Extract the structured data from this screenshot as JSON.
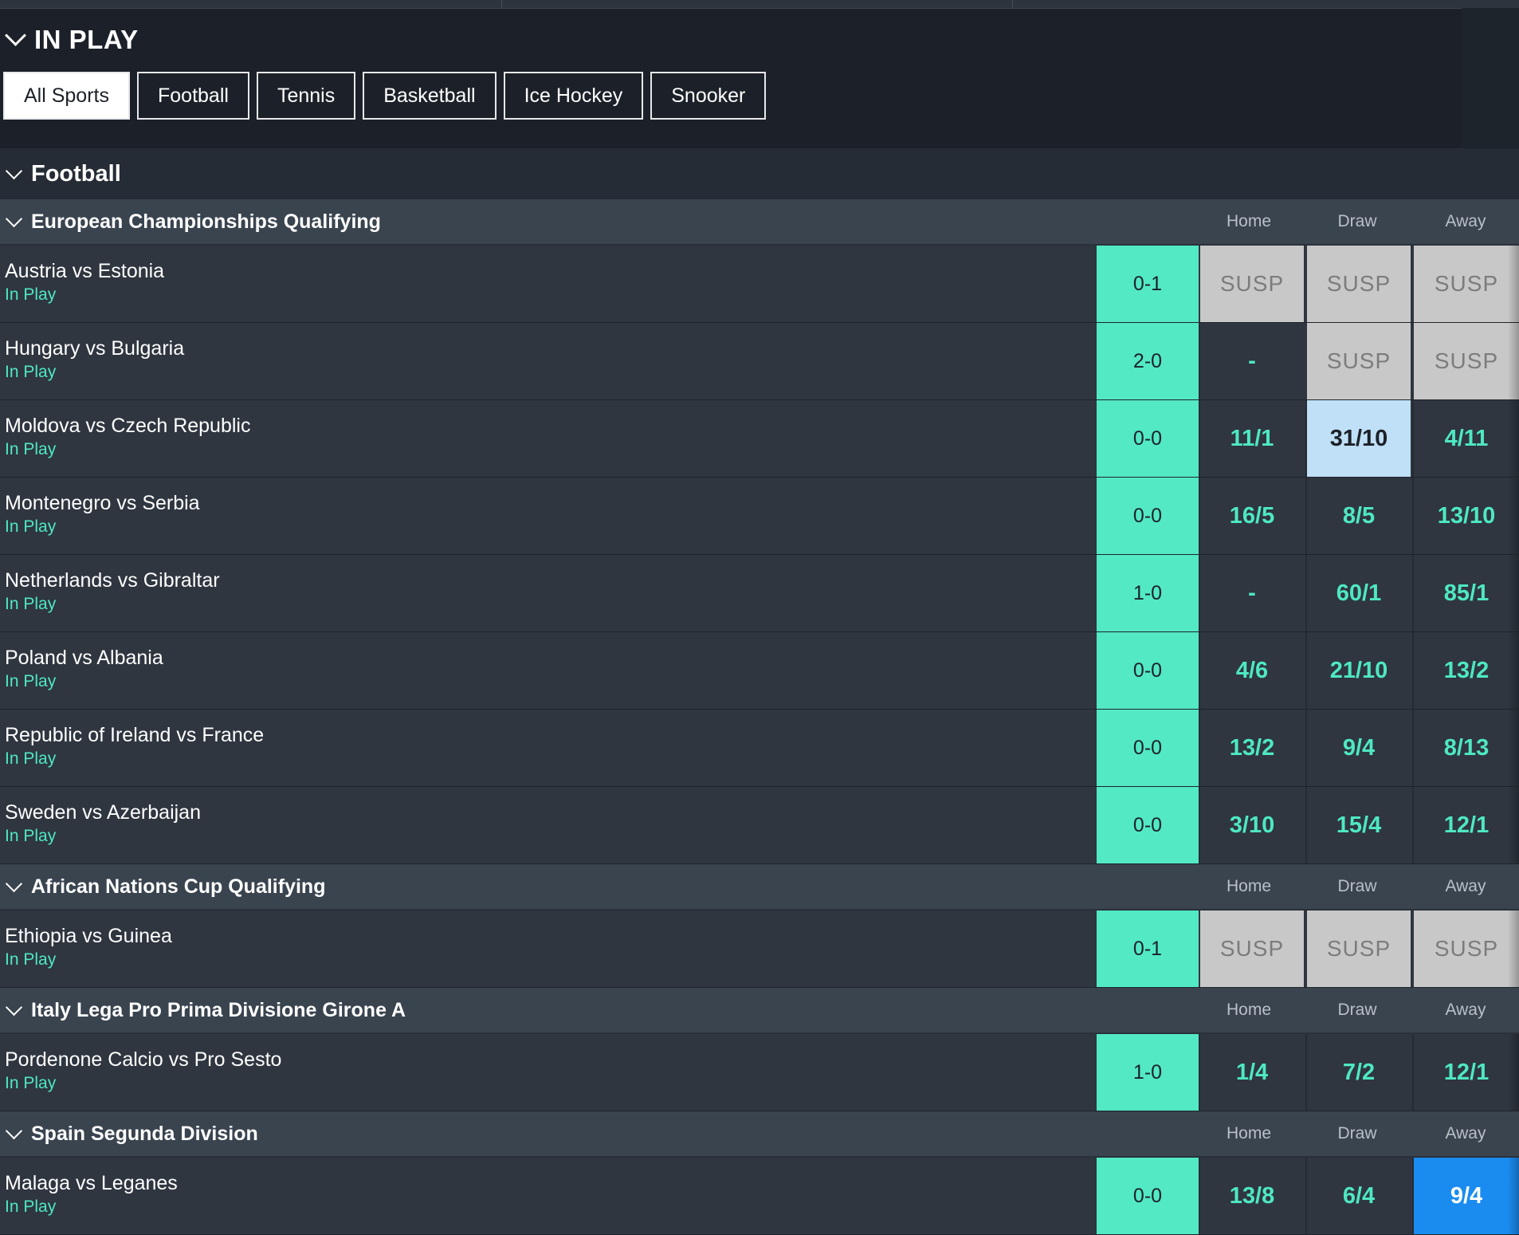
{
  "inplay": {
    "title": "IN PLAY"
  },
  "sport_tabs": [
    "All Sports",
    "Football",
    "Tennis",
    "Basketball",
    "Ice Hockey",
    "Snooker"
  ],
  "active_tab": "All Sports",
  "sport": {
    "title": "Football"
  },
  "columns": {
    "home": "Home",
    "draw": "Draw",
    "away": "Away"
  },
  "competitions": [
    {
      "name": "European Championships Qualifying",
      "matches": [
        {
          "name": "Austria vs Estonia",
          "status": "In Play",
          "score": "0-1",
          "odds": [
            "SUSP",
            "SUSP",
            "SUSP"
          ]
        },
        {
          "name": "Hungary vs Bulgaria",
          "status": "In Play",
          "score": "2-0",
          "odds": [
            "-",
            "SUSP",
            "SUSP"
          ]
        },
        {
          "name": "Moldova vs Czech Republic",
          "status": "In Play",
          "score": "0-0",
          "odds": [
            "11/1",
            "31/10",
            "4/11"
          ],
          "highlight": {
            "index": 1,
            "style": "light"
          }
        },
        {
          "name": "Montenegro vs Serbia",
          "status": "In Play",
          "score": "0-0",
          "odds": [
            "16/5",
            "8/5",
            "13/10"
          ]
        },
        {
          "name": "Netherlands vs Gibraltar",
          "status": "In Play",
          "score": "1-0",
          "odds": [
            "-",
            "60/1",
            "85/1"
          ]
        },
        {
          "name": "Poland vs Albania",
          "status": "In Play",
          "score": "0-0",
          "odds": [
            "4/6",
            "21/10",
            "13/2"
          ]
        },
        {
          "name": "Republic of Ireland vs France",
          "status": "In Play",
          "score": "0-0",
          "odds": [
            "13/2",
            "9/4",
            "8/13"
          ]
        },
        {
          "name": "Sweden vs Azerbaijan",
          "status": "In Play",
          "score": "0-0",
          "odds": [
            "3/10",
            "15/4",
            "12/1"
          ]
        }
      ]
    },
    {
      "name": "African Nations Cup Qualifying",
      "matches": [
        {
          "name": "Ethiopia vs Guinea",
          "status": "In Play",
          "score": "0-1",
          "odds": [
            "SUSP",
            "SUSP",
            "SUSP"
          ]
        }
      ]
    },
    {
      "name": "Italy Lega Pro Prima Divisione Girone A",
      "matches": [
        {
          "name": "Pordenone Calcio vs Pro Sesto",
          "status": "In Play",
          "score": "1-0",
          "odds": [
            "1/4",
            "7/2",
            "12/1"
          ]
        }
      ]
    },
    {
      "name": "Spain Segunda Division",
      "matches": [
        {
          "name": "Malaga vs Leganes",
          "status": "In Play",
          "score": "0-0",
          "odds": [
            "13/8",
            "6/4",
            "9/4"
          ],
          "highlight": {
            "index": 2,
            "style": "blue"
          }
        }
      ]
    }
  ],
  "colors": {
    "accent": "#52e9c4",
    "odds_text": "#4ee8c2",
    "susp_bg": "#c8c8c8",
    "selected_light": "#bfe0f6",
    "selected_blue": "#1a8cf0",
    "background": "#1c2129"
  },
  "icons": {
    "collapse": "chevron-down-icon"
  }
}
